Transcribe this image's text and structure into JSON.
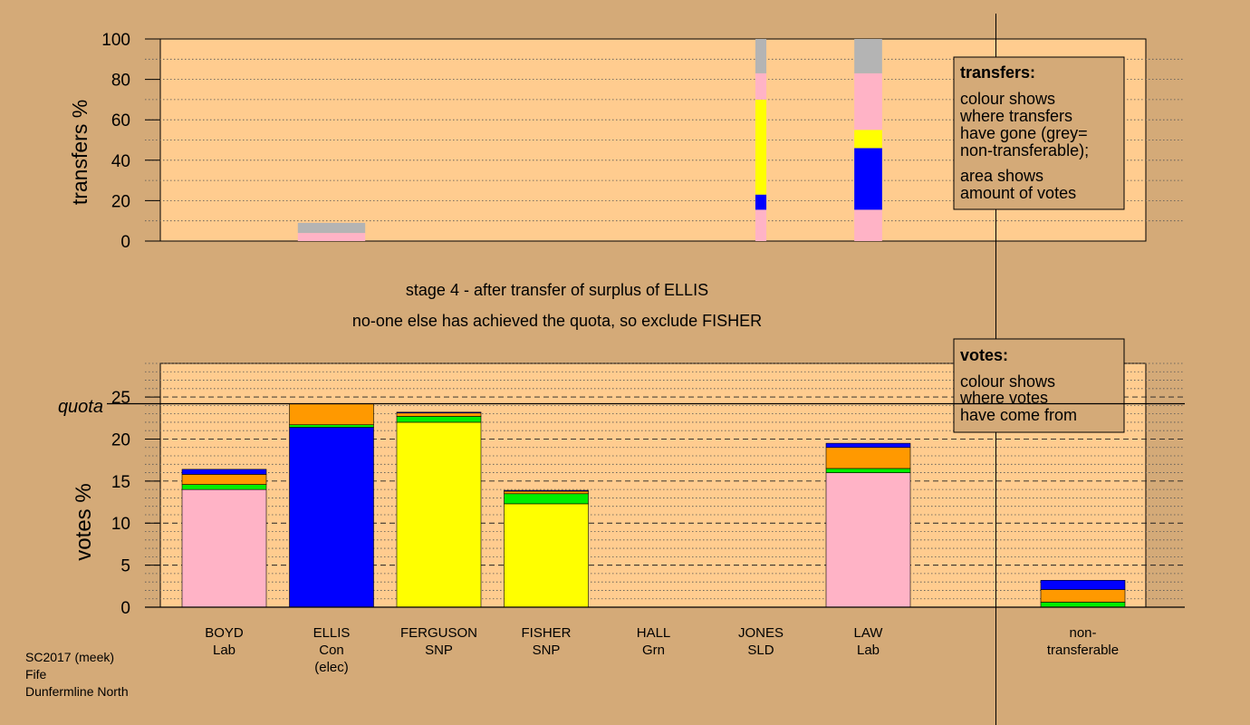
{
  "colors": {
    "background": "#d4aa78",
    "plot_bg": "#ffcc8f",
    "Lab": "#ffb3c6",
    "Con": "#0000ff",
    "SNP": "#ffff00",
    "Grn": "#00ee00",
    "SLD": "#ff9900",
    "nontransferable": "#b4b4b4"
  },
  "stage_text": {
    "line1": "stage 4 - after transfer of surplus of ELLIS",
    "line2": "no-one else has achieved the quota, so exclude FISHER"
  },
  "footer": {
    "line1": "SC2017 (meek)",
    "line2": "Fife",
    "line3": "Dunfermline North"
  },
  "legend_transfers": {
    "title": "transfers:",
    "lines": [
      "colour shows",
      "where transfers",
      "have gone (grey=",
      "non-transferable);",
      "area shows",
      "amount of votes"
    ]
  },
  "legend_votes": {
    "title": "votes:",
    "lines": [
      "colour shows",
      "where votes",
      "have come from"
    ]
  },
  "chart_data": [
    {
      "type": "bar",
      "ylabel": "transfers %",
      "ylim": [
        0,
        100
      ],
      "yticks": [
        0,
        20,
        40,
        60,
        80,
        100
      ],
      "bars": [
        {
          "column": 1,
          "widthFraction": 0.8,
          "segments": [
            {
              "party": "Lab",
              "from": 0,
              "to": 4
            },
            {
              "party": "nontransferable",
              "from": 4,
              "to": 9
            }
          ]
        },
        {
          "column": 5,
          "widthFraction": 0.13,
          "segments": [
            {
              "party": "Lab",
              "from": 0,
              "to": 15.5
            },
            {
              "party": "Con",
              "from": 15.5,
              "to": 23
            },
            {
              "party": "SNP",
              "from": 23,
              "to": 70
            },
            {
              "party": "Lab",
              "from": 70,
              "to": 83
            },
            {
              "party": "nontransferable",
              "from": 83,
              "to": 100
            }
          ]
        },
        {
          "column": 6,
          "widthFraction": 0.33,
          "segments": [
            {
              "party": "Lab",
              "from": 0,
              "to": 15.5
            },
            {
              "party": "Con",
              "from": 15.5,
              "to": 46
            },
            {
              "party": "SNP",
              "from": 46,
              "to": 55
            },
            {
              "party": "Lab",
              "from": 55,
              "to": 83
            },
            {
              "party": "nontransferable",
              "from": 83,
              "to": 100
            }
          ]
        }
      ]
    },
    {
      "type": "bar",
      "ylabel": "votes %",
      "ylim": [
        0,
        29
      ],
      "yticks": [
        0,
        5,
        10,
        15,
        20,
        25
      ],
      "quota": 24.2,
      "quota_label": "quota",
      "categories": [
        {
          "name": "BOYD",
          "party": "Lab",
          "extra": ""
        },
        {
          "name": "ELLIS",
          "party": "Con",
          "extra": "(elec)"
        },
        {
          "name": "FERGUSON",
          "party": "SNP",
          "extra": ""
        },
        {
          "name": "FISHER",
          "party": "SNP",
          "extra": ""
        },
        {
          "name": "HALL",
          "party": "Grn",
          "extra": ""
        },
        {
          "name": "JONES",
          "party": "SLD",
          "extra": ""
        },
        {
          "name": "LAW",
          "party": "Lab",
          "extra": ""
        },
        {
          "name": "non-",
          "party": "transferable",
          "extra": ""
        }
      ],
      "stacks": [
        {
          "column": 0,
          "segments": [
            {
              "party": "Lab",
              "value": 14.0
            },
            {
              "party": "Grn",
              "value": 0.6
            },
            {
              "party": "SLD",
              "value": 1.2
            },
            {
              "party": "Con",
              "value": 0.6
            }
          ]
        },
        {
          "column": 1,
          "segments": [
            {
              "party": "Con",
              "value": 21.4
            },
            {
              "party": "Grn",
              "value": 0.3
            },
            {
              "party": "SLD",
              "value": 2.5
            }
          ]
        },
        {
          "column": 2,
          "segments": [
            {
              "party": "SNP",
              "value": 22.0
            },
            {
              "party": "Grn",
              "value": 0.7
            },
            {
              "party": "SLD",
              "value": 0.4
            },
            {
              "party": "Con",
              "value": 0.1
            }
          ]
        },
        {
          "column": 3,
          "segments": [
            {
              "party": "SNP",
              "value": 12.3
            },
            {
              "party": "Grn",
              "value": 1.2
            },
            {
              "party": "SLD",
              "value": 0.3
            },
            {
              "party": "Con",
              "value": 0.1
            }
          ]
        },
        {
          "column": 4,
          "segments": []
        },
        {
          "column": 5,
          "segments": []
        },
        {
          "column": 6,
          "segments": [
            {
              "party": "Lab",
              "value": 16.0
            },
            {
              "party": "Grn",
              "value": 0.5
            },
            {
              "party": "SLD",
              "value": 2.5
            },
            {
              "party": "Con",
              "value": 0.5
            }
          ]
        },
        {
          "column": 8,
          "segments": [
            {
              "party": "Grn",
              "value": 0.6
            },
            {
              "party": "SLD",
              "value": 1.5
            },
            {
              "party": "Con",
              "value": 1.1
            }
          ]
        }
      ]
    }
  ]
}
